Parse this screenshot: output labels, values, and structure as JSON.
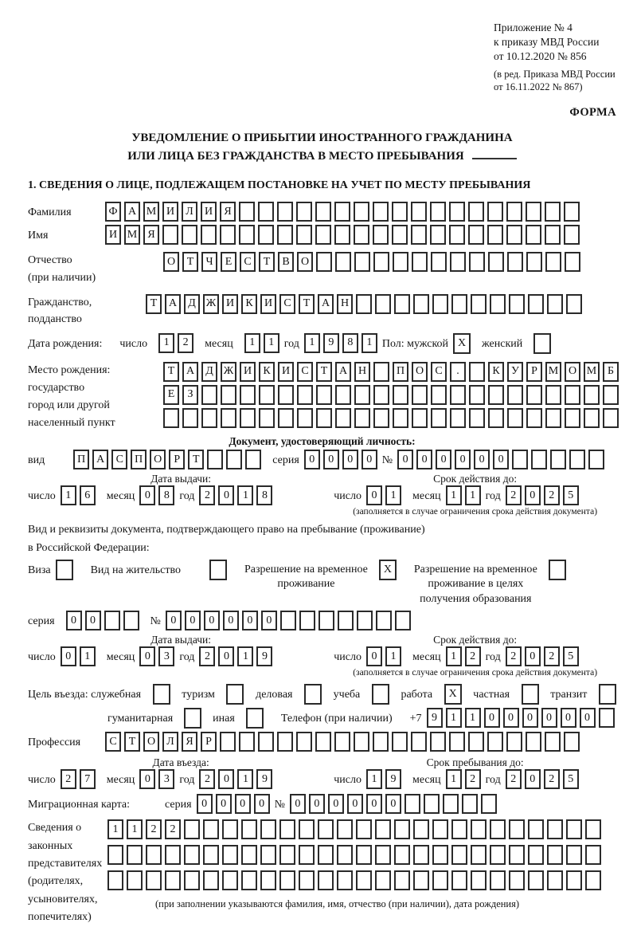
{
  "page": {
    "header_ref": [
      "Приложение № 4",
      "к приказу МВД России",
      "от 10.12.2020 № 856"
    ],
    "header_ed": [
      "(в ред. Приказа МВД России",
      "от 16.11.2022 № 867)"
    ],
    "forma": "ФОРМА",
    "title1": "УВЕДОМЛЕНИЕ О ПРИБЫТИИ ИНОСТРАННОГО ГРАЖДАНИНА",
    "title2": "ИЛИ ЛИЦА БЕЗ ГРАЖДАНСТВА В МЕСТО ПРЕБЫВАНИЯ",
    "section1": "1. СВЕДЕНИЯ О ЛИЦЕ, ПОДЛЕЖАЩЕМ ПОСТАНОВКЕ НА УЧЕТ ПО МЕСТУ ПРЕБЫВАНИЯ"
  },
  "labels": {
    "surname": "Фамилия",
    "name": "Имя",
    "patronymic": "Отчество",
    "patronymic2": "(при наличии)",
    "citizenship": "Гражданство,",
    "citizenship2": "подданство",
    "birthdate": "Дата рождения:",
    "day": "число",
    "month": "месяц",
    "year": "год",
    "sex_male": "Пол: мужской",
    "sex_female": "женский",
    "birthplace1": "Место рождения:",
    "birthplace2": "государство",
    "birthplace3": "город или другой",
    "birthplace4": "населенный пункт",
    "iddoc_heading": "Документ, удостоверяющий личность:",
    "kind": "вид",
    "series": "серия",
    "number": "№",
    "issue_date": "Дата выдачи:",
    "valid_until": "Срок действия до:",
    "valid_note": "(заполняется в случае ограничения срока действия документа)",
    "right_doc1": "Вид и реквизиты документа, подтверждающего право на пребывание (проживание)",
    "right_doc2": "в Российской Федерации:",
    "visa": "Виза",
    "residence_permit": "Вид на жительство",
    "temp_residence": "Разрешение на временное\nпроживание",
    "temp_residence_edu": "Разрешение на временное\nпроживание в целях\nполучения образования",
    "purpose": "Цель въезда: служебная",
    "tourism": "туризм",
    "business": "деловая",
    "study": "учеба",
    "work": "работа",
    "private": "частная",
    "transit": "транзит",
    "humanitarian": "гуманитарная",
    "other": "иная",
    "phone": "Телефон (при наличии)",
    "phone_prefix": "+7",
    "profession": "Профессия",
    "entry_date": "Дата въезда:",
    "stay_until": "Срок пребывания до:",
    "migration_card": "Миграционная карта:",
    "representatives": [
      "Сведения о",
      "законных",
      "представителях",
      "(родителях,",
      "усыновителях,",
      "попечителях)"
    ],
    "rep_note": "(при заполнении указываются фамилия, имя, отчество (при наличии), дата рождения)"
  },
  "boxes": {
    "surname": {
      "v": "ФАМИЛИЯ",
      "n": 25
    },
    "name": {
      "v": "ИМЯ",
      "n": 25
    },
    "patronymic": {
      "v": "ОТЧЕСТВО",
      "n": 22
    },
    "citizenship": {
      "v": "ТАДЖИКИСТАН",
      "n": 23
    },
    "birth_day": {
      "v": "12",
      "n": 2
    },
    "birth_month": {
      "v": "11",
      "n": 2
    },
    "birth_year": {
      "v": "1981",
      "n": 4
    },
    "sex_male_chk": {
      "v": "X",
      "n": 1
    },
    "sex_female_chk": {
      "v": "",
      "n": 1
    },
    "birthplace_row1": {
      "v": "ТАДЖИКИСТАН ПОС. КУРМОМБ",
      "n": 24
    },
    "birthplace_row2": {
      "v": "ЕЗ",
      "n": 24
    },
    "birthplace_row3": {
      "v": "",
      "n": 24
    },
    "doc_kind": {
      "v": "ПАСПОРТ",
      "n": 10
    },
    "doc_series": {
      "v": "0000",
      "n": 4
    },
    "doc_number": {
      "v": "000000",
      "n": 11
    },
    "doc_issue_day": {
      "v": "16",
      "n": 2
    },
    "doc_issue_month": {
      "v": "08",
      "n": 2
    },
    "doc_issue_year": {
      "v": "2018",
      "n": 4
    },
    "doc_valid_day": {
      "v": "01",
      "n": 2
    },
    "doc_valid_month": {
      "v": "11",
      "n": 2
    },
    "doc_valid_year": {
      "v": "2025",
      "n": 4
    },
    "visa_chk": {
      "v": "",
      "n": 1
    },
    "residence_permit_chk": {
      "v": "",
      "n": 1
    },
    "temp_residence_chk": {
      "v": "X",
      "n": 1
    },
    "temp_residence_edu_chk": {
      "v": "",
      "n": 1
    },
    "permit_series": {
      "v": "00",
      "n": 4
    },
    "permit_number": {
      "v": "000000",
      "n": 13
    },
    "permit_issue_day": {
      "v": "01",
      "n": 2
    },
    "permit_issue_month": {
      "v": "03",
      "n": 2
    },
    "permit_issue_year": {
      "v": "2019",
      "n": 4
    },
    "permit_valid_day": {
      "v": "01",
      "n": 2
    },
    "permit_valid_month": {
      "v": "12",
      "n": 2
    },
    "permit_valid_year": {
      "v": "2025",
      "n": 4
    },
    "purpose_official_chk": {
      "v": "",
      "n": 1
    },
    "purpose_tourism_chk": {
      "v": "",
      "n": 1
    },
    "purpose_business_chk": {
      "v": "",
      "n": 1
    },
    "purpose_study_chk": {
      "v": "",
      "n": 1
    },
    "purpose_work_chk": {
      "v": "X",
      "n": 1
    },
    "purpose_private_chk": {
      "v": "",
      "n": 1
    },
    "purpose_transit_chk": {
      "v": "",
      "n": 1
    },
    "purpose_humanitarian_chk": {
      "v": "",
      "n": 1
    },
    "purpose_other_chk": {
      "v": "",
      "n": 1
    },
    "phone": {
      "v": "911000000",
      "n": 10
    },
    "profession": {
      "v": "СТОЛЯР",
      "n": 25
    },
    "entry_day": {
      "v": "27",
      "n": 2
    },
    "entry_month": {
      "v": "03",
      "n": 2
    },
    "entry_year": {
      "v": "2019",
      "n": 4
    },
    "stay_day": {
      "v": "19",
      "n": 2
    },
    "stay_month": {
      "v": "12",
      "n": 2
    },
    "stay_year": {
      "v": "2025",
      "n": 4
    },
    "mig_series": {
      "v": "0000",
      "n": 4
    },
    "mig_number": {
      "v": "000000",
      "n": 11
    },
    "rep_row1": {
      "v": "1122",
      "n": 26
    },
    "rep_row2": {
      "v": "",
      "n": 26
    },
    "rep_row3": {
      "v": "",
      "n": 26
    }
  }
}
